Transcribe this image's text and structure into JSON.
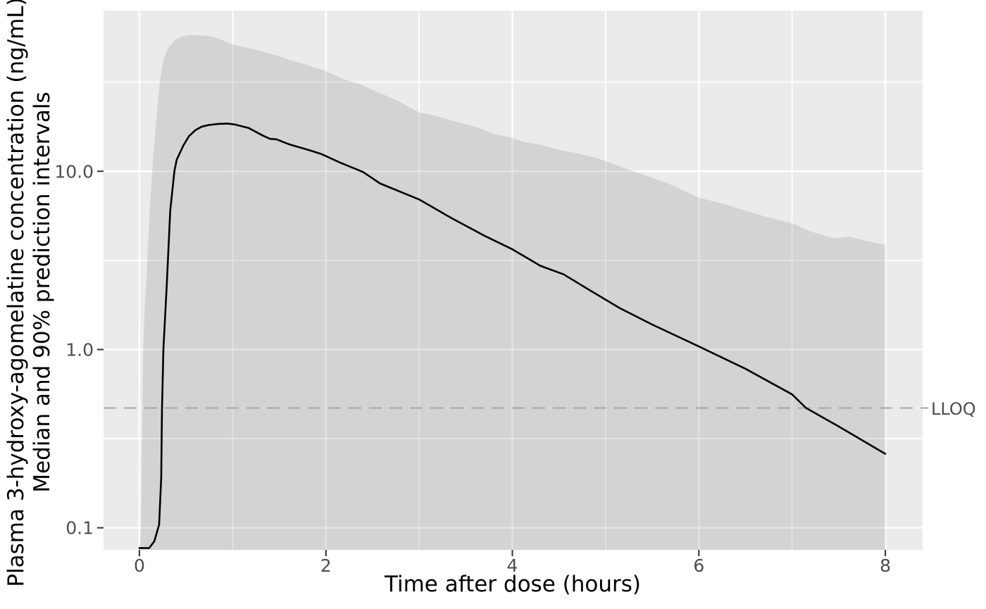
{
  "figure": {
    "y_axis_title_line1": "Plasma 3-hydroxy-agomelatine concentration (ng/mL)",
    "y_axis_title_line2": "Median and 90% prediction intervals",
    "x_axis_title": "Time after dose (hours)",
    "lloq_label": "LLOQ"
  },
  "colors": {
    "background": "#FFFFFF",
    "panel_background": "#EBEBEB",
    "gridline": "#FFFFFF",
    "ribbon_fill": "#7F7F7F",
    "ribbon_opacity": 0.22,
    "median_line": "#000000",
    "lloq_line": "#ABABAB",
    "tick_mark": "#333333",
    "tick_label": "#4D4D4D",
    "axis_title": "#000000",
    "lloq_text": "#4D4D4D"
  },
  "chart_data": {
    "type": "line",
    "title": "",
    "xlabel": "Time after dose (hours)",
    "ylabel": "Plasma 3-hydroxy-agomelatine concentration (ng/mL) — Median and 90% prediction intervals",
    "y_scale": "log10",
    "xlim": [
      -0.385,
      8.4
    ],
    "ylim": [
      0.0752,
      79.7
    ],
    "grid": "on",
    "legend_position": "none",
    "x_ticks": [
      {
        "value": 0,
        "label": "0"
      },
      {
        "value": 2,
        "label": "2"
      },
      {
        "value": 4,
        "label": "4"
      },
      {
        "value": 6,
        "label": "6"
      },
      {
        "value": 8,
        "label": "8"
      }
    ],
    "y_ticks": [
      {
        "value": 0.1,
        "label": "0.1"
      },
      {
        "value": 1.0,
        "label": "1.0"
      },
      {
        "value": 10.0,
        "label": "10.0"
      }
    ],
    "x_minor_gridlines": [
      1,
      3,
      5,
      7
    ],
    "y_minor_gridlines": [
      0.3162,
      3.162,
      31.62
    ],
    "lloq": {
      "label": "LLOQ",
      "value": 0.47,
      "line_style": "dashed"
    },
    "series": [
      {
        "name": "Median",
        "type": "line",
        "points": [
          [
            0,
            0.077
          ],
          [
            0.105,
            0.077
          ],
          [
            0.16,
            0.084
          ],
          [
            0.211,
            0.104
          ],
          [
            0.234,
            0.19
          ],
          [
            0.242,
            0.46
          ],
          [
            0.257,
            1.0
          ],
          [
            0.295,
            2.4
          ],
          [
            0.33,
            6.0
          ],
          [
            0.375,
            10.0
          ],
          [
            0.4,
            11.6
          ],
          [
            0.47,
            13.9
          ],
          [
            0.53,
            15.7
          ],
          [
            0.6,
            17.0
          ],
          [
            0.67,
            17.8
          ],
          [
            0.75,
            18.2
          ],
          [
            0.85,
            18.45
          ],
          [
            0.95,
            18.5
          ],
          [
            1.02,
            18.3
          ],
          [
            1.17,
            17.5
          ],
          [
            1.32,
            15.9
          ],
          [
            1.4,
            15.2
          ],
          [
            1.47,
            15.1
          ],
          [
            1.6,
            14.2
          ],
          [
            1.83,
            13.1
          ],
          [
            1.95,
            12.5
          ],
          [
            2.15,
            11.2
          ],
          [
            2.4,
            9.9
          ],
          [
            2.58,
            8.55
          ],
          [
            3.0,
            6.95
          ],
          [
            3.35,
            5.45
          ],
          [
            3.7,
            4.35
          ],
          [
            4.0,
            3.65
          ],
          [
            4.3,
            2.95
          ],
          [
            4.55,
            2.64
          ],
          [
            4.8,
            2.2
          ],
          [
            5.15,
            1.71
          ],
          [
            5.5,
            1.38
          ],
          [
            6.0,
            1.04
          ],
          [
            6.5,
            0.78
          ],
          [
            7.0,
            0.56
          ],
          [
            7.15,
            0.47
          ],
          [
            7.5,
            0.37
          ],
          [
            8.0,
            0.26
          ]
        ]
      },
      {
        "name": "90% prediction interval",
        "type": "ribbon",
        "note": "lower 5th percentile is below the plotted y-range (ribbon clipped at panel bottom)",
        "upper": [
          [
            0,
            0.075
          ],
          [
            0.015,
            0.1
          ],
          [
            0.023,
            0.19
          ],
          [
            0.04,
            1.0
          ],
          [
            0.06,
            1.9
          ],
          [
            0.075,
            2.4
          ],
          [
            0.11,
            6.0
          ],
          [
            0.15,
            12.5
          ],
          [
            0.19,
            22
          ],
          [
            0.22,
            32
          ],
          [
            0.26,
            43
          ],
          [
            0.31,
            49
          ],
          [
            0.38,
            54.5
          ],
          [
            0.45,
            57
          ],
          [
            0.53,
            58.2
          ],
          [
            0.65,
            57.8
          ],
          [
            0.77,
            57.2
          ],
          [
            0.88,
            54.5
          ],
          [
            1.0,
            51.5
          ],
          [
            1.14,
            49.5
          ],
          [
            1.27,
            47.8
          ],
          [
            1.4,
            45.6
          ],
          [
            1.53,
            43.6
          ],
          [
            1.65,
            41.6
          ],
          [
            1.78,
            39.7
          ],
          [
            2.0,
            36.5
          ],
          [
            2.2,
            32.7
          ],
          [
            2.35,
            31.0
          ],
          [
            2.5,
            28.6
          ],
          [
            2.65,
            26.5
          ],
          [
            2.8,
            24.4
          ],
          [
            3.0,
            21.4
          ],
          [
            3.15,
            20.6
          ],
          [
            3.3,
            19.6
          ],
          [
            3.5,
            18.4
          ],
          [
            3.65,
            17.4
          ],
          [
            3.8,
            16.2
          ],
          [
            4.0,
            15.4
          ],
          [
            4.12,
            14.6
          ],
          [
            4.3,
            14.1
          ],
          [
            4.5,
            13.2
          ],
          [
            4.7,
            12.6
          ],
          [
            4.9,
            11.9
          ],
          [
            5.1,
            10.9
          ],
          [
            5.3,
            10.0
          ],
          [
            5.5,
            9.2
          ],
          [
            5.7,
            8.4
          ],
          [
            6.0,
            7.1
          ],
          [
            6.25,
            6.6
          ],
          [
            6.5,
            6.0
          ],
          [
            6.75,
            5.5
          ],
          [
            7.0,
            5.1
          ],
          [
            7.2,
            4.6
          ],
          [
            7.45,
            4.2
          ],
          [
            7.62,
            4.3
          ],
          [
            7.8,
            4.05
          ],
          [
            8.0,
            3.87
          ]
        ],
        "lower": [
          [
            0,
            0.06
          ],
          [
            8,
            0.06
          ]
        ]
      }
    ]
  }
}
